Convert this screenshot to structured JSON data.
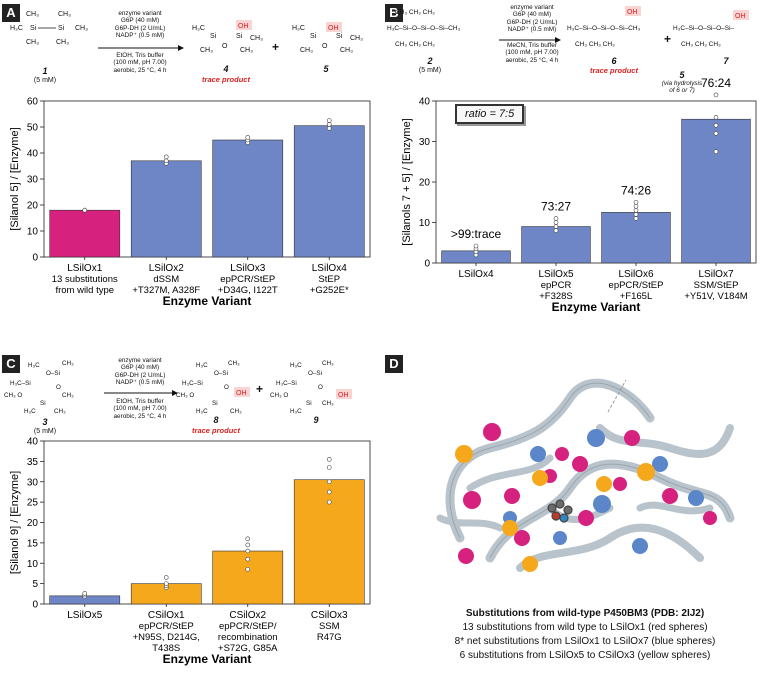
{
  "panels": {
    "A": {
      "letter": "A",
      "conditions": "enzyme variant\nG6P (40 mM)\nG6P-DH (2 U/mL)\nNADP⁺ (0.5 mM)",
      "conditions2": "EtOH, Tris buffer\n(100 mM, pH 7.00)\naerobic, 25 °C, 4 h",
      "substrate_num": "1",
      "substrate_conc": "(5 mM)",
      "product1_num": "4",
      "product1_note": "trace product",
      "product2_num": "5",
      "plus": "+"
    },
    "B": {
      "letter": "B",
      "conditions": "enzyme variant\nG6P (40 mM)\nG6P-DH (2 U/mL)\nNADP⁺ (0.5 mM)",
      "conditions2": "MeCN, Tris buffer\n(100 mM, pH 7.00)\naerobic, 25 °C, 4 h",
      "substrate_num": "2",
      "substrate_conc": "(5 mM)",
      "product1_num": "6",
      "product1_note": "trace product",
      "product2_num": "7",
      "plus": "+",
      "extra_num": "5",
      "extra_note": "(via hydrolysis\nof 6 or 7)",
      "ratio_label": "ratio = 7:5"
    },
    "C": {
      "letter": "C",
      "conditions": "enzyme variant\nG6P (40 mM)\nG6P-DH (2 U/mL)\nNADP⁺ (0.5 mM)",
      "conditions2": "EtOH, Tris buffer\n(100 mM, pH 7.00)\naerobic, 25 °C, 4 h",
      "substrate_num": "3",
      "substrate_conc": "(5 mM)",
      "product1_num": "8",
      "product1_note": "trace product",
      "product2_num": "9",
      "plus": "+"
    },
    "D": {
      "letter": "D",
      "caption_title": "Substitutions from wild-type P450BM3 (PDB: 2IJ2)",
      "caption_lines": [
        "13 substitutions from wild type to LSilOx1 (red spheres)",
        "8* net substitutions from LSilOx1 to LSilOx7 (blue spheres)",
        "6 substitutions from LSilOx5 to CSilOx3 (yellow spheres)"
      ]
    }
  },
  "chart_data": [
    {
      "type": "bar",
      "panel": "A",
      "ylabel": "[Silanol 5] / [Enzyme]",
      "xlabel": "Enzyme Variant",
      "ylim": [
        0,
        60
      ],
      "yticks": [
        0,
        10,
        20,
        30,
        40,
        50,
        60
      ],
      "categories": [
        "LSilOx1",
        "LSilOx2",
        "LSilOx3",
        "LSilOx4"
      ],
      "category_sublabels": [
        "13 substitutions\nfrom wild type",
        "dSSM\n+T327M, A328F",
        "epPCR/StEP\n+D34G, I122T",
        "StEP\n+G252E*"
      ],
      "values": [
        18,
        37,
        45,
        50.5
      ],
      "points": [
        [
          18,
          18,
          18
        ],
        [
          36,
          37,
          38.5
        ],
        [
          44,
          45,
          46
        ],
        [
          49.5,
          51,
          52.5
        ]
      ],
      "colors": [
        "#d6217e",
        "#6f86c6",
        "#6f86c6",
        "#6f86c6"
      ]
    },
    {
      "type": "bar",
      "panel": "B",
      "ylabel": "[Silanols 7 + 5] / [Enzyme]",
      "xlabel": "Enzyme Variant",
      "ylim": [
        0,
        40
      ],
      "yticks": [
        0,
        10,
        20,
        30,
        40
      ],
      "categories": [
        "LSilOx4",
        "LSilOx5",
        "LSilOx6",
        "LSilOx7"
      ],
      "category_sublabels": [
        "",
        "epPCR\n+F328S",
        "epPCR/StEP\n+F165L",
        "SSM/StEP\n+Y51V, V184M"
      ],
      "values": [
        3,
        9,
        12.5,
        35.5
      ],
      "ratios": [
        ">99:trace",
        "73:27",
        "74:26",
        "76:24"
      ],
      "points": [
        [
          2,
          2.8,
          3.5,
          4.2
        ],
        [
          8,
          9,
          10,
          11
        ],
        [
          11,
          12,
          13,
          14,
          15
        ],
        [
          27.5,
          32,
          34,
          36,
          41.5
        ]
      ],
      "colors": [
        "#6f86c6",
        "#6f86c6",
        "#6f86c6",
        "#6f86c6"
      ]
    },
    {
      "type": "bar",
      "panel": "C",
      "ylabel": "[Silanol 9] / [Enzyme]",
      "xlabel": "Enzyme Variant",
      "ylim": [
        0,
        40
      ],
      "yticks": [
        0,
        5,
        10,
        15,
        20,
        25,
        30,
        35,
        40
      ],
      "categories": [
        "LSilOx5",
        "CSilOx1",
        "CSilOx2",
        "CSilOx3"
      ],
      "category_sublabels": [
        "",
        "epPCR/StEP\n+N95S, D214G,\nT438S",
        "epPCR/StEP/\nrecombination\n+S72G, G85A",
        "SSM\nR47G"
      ],
      "values": [
        2,
        5,
        13,
        30.5
      ],
      "points": [
        [
          1.8,
          2.2,
          2.6
        ],
        [
          4,
          4.5,
          5,
          6.5
        ],
        [
          8.5,
          11,
          13,
          14.5,
          16
        ],
        [
          25,
          27.5,
          30,
          33.5,
          35.5
        ]
      ],
      "colors": [
        "#6f86c6",
        "#f5a81c",
        "#f5a81c",
        "#f5a81c"
      ]
    }
  ]
}
